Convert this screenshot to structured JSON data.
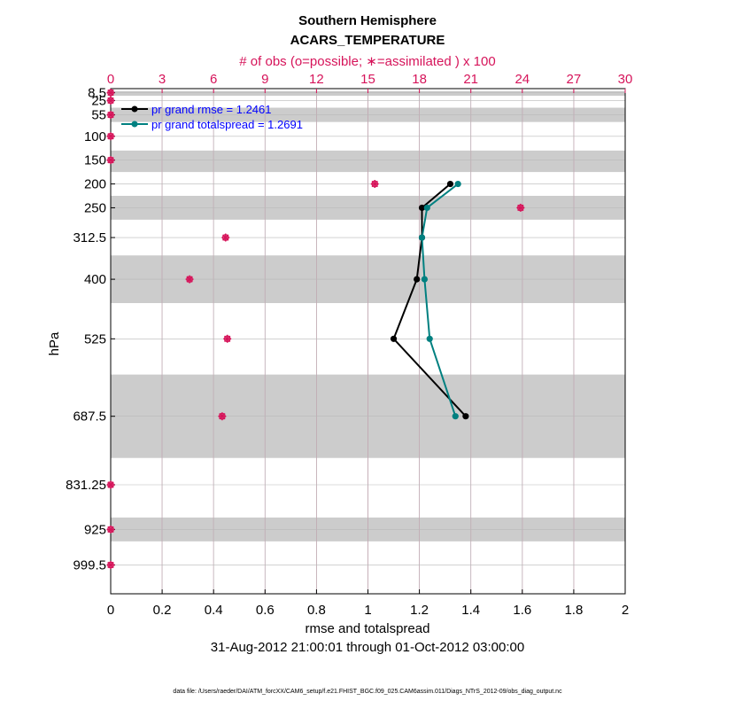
{
  "chart_data": {
    "type": "line",
    "title": "Southern Hemisphere",
    "subtitle": "ACARS_TEMPERATURE",
    "top_axis_label": "# of obs (o=possible; ∗=assimilated ) x 100",
    "top_ticks": [
      "0",
      "3",
      "6",
      "9",
      "12",
      "15",
      "18",
      "21",
      "24",
      "27",
      "30"
    ],
    "top_range": [
      0,
      30
    ],
    "xlabel": "rmse and totalspread",
    "xlim": [
      0,
      2
    ],
    "x_ticks": [
      "0",
      "0.2",
      "0.4",
      "0.6",
      "0.8",
      "1",
      "1.2",
      "1.4",
      "1.6",
      "1.8",
      "2"
    ],
    "ylabel": "hPa",
    "levels": [
      8.5,
      25,
      55,
      100,
      150,
      200,
      250,
      312.5,
      400,
      525,
      687.5,
      831.25,
      925,
      999.5
    ],
    "level_labels": [
      "8.5",
      "25",
      "55",
      "100",
      "150",
      "200",
      "250",
      "312.5",
      "400",
      "525",
      "687.5",
      "831.25",
      "925",
      "999.5"
    ],
    "shaded_bands": [
      {
        "top": 5,
        "bottom": 15
      },
      {
        "top": 40,
        "bottom": 70
      },
      {
        "top": 130,
        "bottom": 175
      },
      {
        "top": 225,
        "bottom": 275
      },
      {
        "top": 350,
        "bottom": 450
      },
      {
        "top": 600,
        "bottom": 775
      },
      {
        "top": 900,
        "bottom": 950
      }
    ],
    "date_range": "31-Aug-2012 21:00:01 through 01-Oct-2012 03:00:00",
    "footer": "data file: /Users/raeder/DAI/ATM_forcXX/CAM6_setup/f.e21.FHIST_BGC.f09_025.CAM6assim.011/Diags_NTrS_2012-09/obs_diag_output.nc",
    "series": [
      {
        "name": "pr grand rmse = 1.2461",
        "color": "#000000",
        "levels": [
          200,
          250,
          312.5,
          400,
          525,
          687.5
        ],
        "values": [
          1.32,
          1.21,
          1.21,
          1.19,
          1.1,
          1.38
        ]
      },
      {
        "name": "pr grand totalspread = 1.2691",
        "color": "#008080",
        "levels": [
          200,
          250,
          312.5,
          400,
          525,
          687.5
        ],
        "values": [
          1.35,
          1.23,
          1.21,
          1.22,
          1.24,
          1.34
        ]
      }
    ],
    "obs_counts": {
      "color": "#d6145a",
      "units": "x 100",
      "levels": [
        8.5,
        25,
        55,
        100,
        150,
        200,
        250,
        312.5,
        400,
        525,
        687.5,
        831.25,
        925,
        999.5
      ],
      "possible": [
        0,
        0,
        0,
        0,
        0,
        15.4,
        23.9,
        6.7,
        4.6,
        6.8,
        6.5,
        0,
        0,
        0
      ],
      "assimilated": [
        0,
        0,
        0,
        0,
        0,
        15.4,
        23.9,
        6.7,
        4.6,
        6.8,
        6.5,
        0,
        0,
        0
      ]
    }
  }
}
